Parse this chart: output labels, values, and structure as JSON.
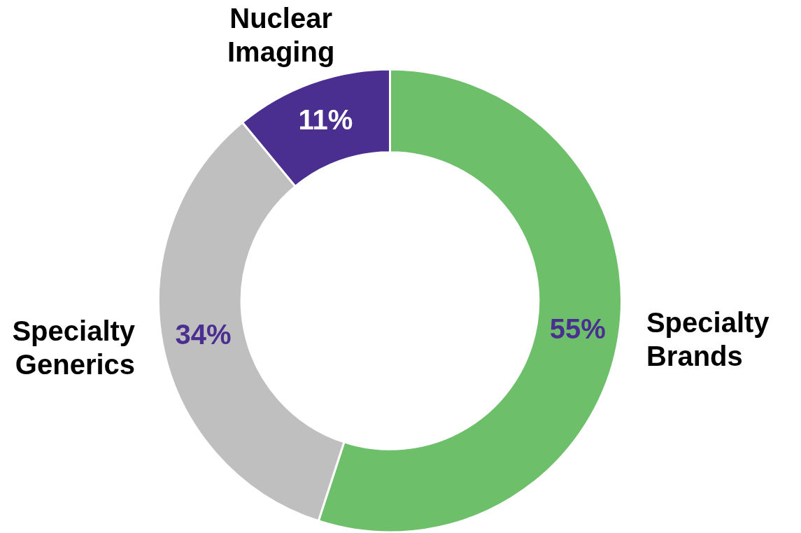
{
  "chart_data": {
    "type": "donut",
    "categories": [
      "Specialty Brands",
      "Specialty Generics",
      "Nuclear Imaging"
    ],
    "values": [
      55,
      34,
      11
    ],
    "colors": [
      "#6dbf6a",
      "#bfbfbf",
      "#4a2f91"
    ],
    "value_labels": [
      "55%",
      "34%",
      "11%"
    ]
  }
}
